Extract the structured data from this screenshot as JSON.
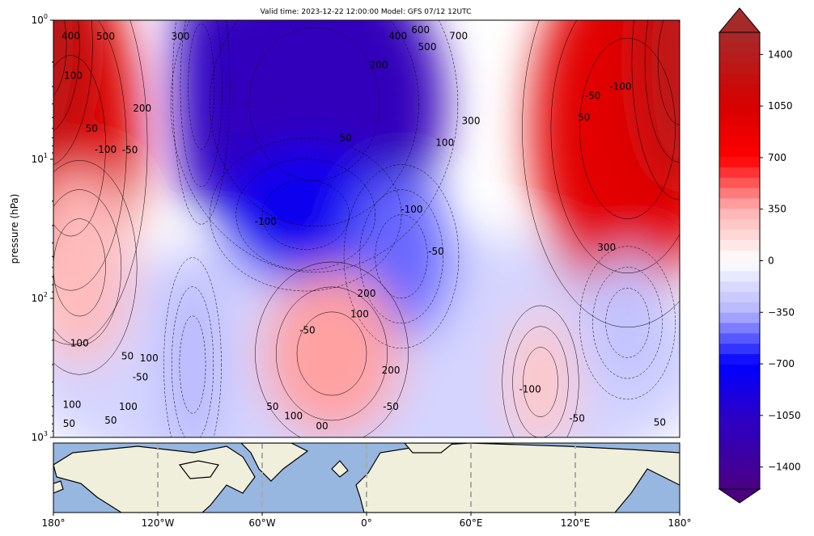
{
  "chart_data": {
    "type": "heatmap",
    "title": "Valid time: 2023-12-22 12:00:00 Model: GFS 07/12 12UTC",
    "ylabel": "pressure (hPa)",
    "xlabel": "",
    "xlim": [
      -180,
      180
    ],
    "ylim": [
      1000,
      1
    ],
    "yscale": "log",
    "y_ticks": [
      {
        "value": 1,
        "label": "10^0"
      },
      {
        "value": 10,
        "label": "10^1"
      },
      {
        "value": 100,
        "label": "10^2"
      },
      {
        "value": 1000,
        "label": "10^3"
      }
    ],
    "x_ticks": [
      {
        "value": -180,
        "label": "180°"
      },
      {
        "value": -120,
        "label": "120°W"
      },
      {
        "value": -60,
        "label": "60°W"
      },
      {
        "value": 0,
        "label": "0°"
      },
      {
        "value": 60,
        "label": "60°E"
      },
      {
        "value": 120,
        "label": "120°E"
      },
      {
        "value": 180,
        "label": "180°"
      }
    ],
    "colorbar": {
      "range": [
        -1550,
        1550
      ],
      "ticks": [
        1400,
        1050,
        700,
        350,
        0,
        -350,
        -700,
        -1050,
        -1400
      ],
      "tick_labels": [
        "1400",
        "1050",
        "700",
        "350",
        "0",
        "−350",
        "−700",
        "−1050",
        "−1400"
      ],
      "extend": "both"
    },
    "field": [
      {
        "lon": 0,
        "p": 300,
        "dlon": 200,
        "dp": 1.0,
        "value": -200
      },
      {
        "lon": -170,
        "p": 8,
        "dlon": 40,
        "dp": 1.3,
        "value": 1000
      },
      {
        "lon": -185,
        "p": 1.5,
        "dlon": 25,
        "dp": 0.8,
        "value": 1350
      },
      {
        "lon": 150,
        "p": 6,
        "dlon": 55,
        "dp": 1.3,
        "value": 950
      },
      {
        "lon": 180,
        "p": 2,
        "dlon": 25,
        "dp": 0.9,
        "value": 1300
      },
      {
        "lon": -30,
        "p": 4,
        "dlon": 75,
        "dp": 1.1,
        "value": -1150
      },
      {
        "lon": -95,
        "p": 3,
        "dlon": 15,
        "dp": 0.9,
        "value": -1100
      },
      {
        "lon": -35,
        "p": 25,
        "dlon": 50,
        "dp": 0.5,
        "value": -800
      },
      {
        "lon": 20,
        "p": 50,
        "dlon": 30,
        "dp": 0.6,
        "value": -500
      },
      {
        "lon": -20,
        "p": 250,
        "dlon": 40,
        "dp": 0.6,
        "value": 380
      },
      {
        "lon": -165,
        "p": 60,
        "dlon": 30,
        "dp": 0.7,
        "value": 300
      },
      {
        "lon": 100,
        "p": 400,
        "dlon": 20,
        "dp": 0.5,
        "value": 250
      },
      {
        "lon": 150,
        "p": 150,
        "dlon": 25,
        "dp": 0.5,
        "value": -280
      },
      {
        "lon": -100,
        "p": 300,
        "dlon": 15,
        "dp": 0.7,
        "value": -350
      }
    ],
    "contour_labels": [
      {
        "lon": -170,
        "p": 1.3,
        "text": "400"
      },
      {
        "lon": -150,
        "p": 1.1,
        "text": "500"
      },
      {
        "lon": -107,
        "p": 1.1,
        "text": "300"
      },
      {
        "lon": -176,
        "p": 2.5,
        "text": "100"
      },
      {
        "lon": -158,
        "p": 6,
        "text": "50"
      },
      {
        "lon": -129,
        "p": 4.3,
        "text": "200"
      },
      {
        "lon": -150,
        "p": 8.5,
        "text": "-100"
      },
      {
        "lon": -136,
        "p": 8.6,
        "text": "-50"
      },
      {
        "lon": 7,
        "p": 2.1,
        "text": "200"
      },
      {
        "lon": 18,
        "p": 1.3,
        "text": "400"
      },
      {
        "lon": 20,
        "p": 1.1,
        "text": "500"
      },
      {
        "lon": 31,
        "p": 1.4,
        "text": "600"
      },
      {
        "lon": 38,
        "p": 1.3,
        "text": "700"
      },
      {
        "lon": 60,
        "p": 5.3,
        "text": "300"
      },
      {
        "lon": 45,
        "p": 7.6,
        "text": "100"
      },
      {
        "lon": -12,
        "p": 7,
        "text": "50"
      },
      {
        "lon": 26,
        "p": 23,
        "text": "-100"
      },
      {
        "lon": -58,
        "p": 28,
        "text": "-100"
      },
      {
        "lon": 40,
        "p": 46,
        "text": "-50"
      },
      {
        "lon": 130,
        "p": 3.5,
        "text": "-50"
      },
      {
        "lon": 146,
        "p": 3,
        "text": "-100"
      },
      {
        "lon": 125,
        "p": 5,
        "text": "50"
      },
      {
        "lon": 138,
        "p": 43,
        "text": "300"
      },
      {
        "lon": 0,
        "p": 92,
        "text": "200"
      },
      {
        "lon": -4,
        "p": 130,
        "text": "100"
      },
      {
        "lon": -34,
        "p": 170,
        "text": "-50"
      },
      {
        "lon": 14,
        "p": 330,
        "text": "200"
      },
      {
        "lon": -165,
        "p": 210,
        "text": "100"
      },
      {
        "lon": -125,
        "p": 270,
        "text": "100"
      },
      {
        "lon": -130,
        "p": 370,
        "text": "-50"
      },
      {
        "lon": -130,
        "p": 310,
        "text": "50"
      },
      {
        "lon": -137,
        "p": 600,
        "text": "100"
      },
      {
        "lon": -54,
        "p": 600,
        "text": "50"
      },
      {
        "lon": -42,
        "p": 700,
        "text": "100"
      },
      {
        "lon": 14,
        "p": 600,
        "text": "-50"
      },
      {
        "lon": 94,
        "p": 450,
        "text": "-100"
      },
      {
        "lon": 121,
        "p": 730,
        "text": "-50"
      },
      {
        "lon": -147,
        "p": 900,
        "text": "50"
      },
      {
        "lon": -171,
        "p": 950,
        "text": "50"
      },
      {
        "lon": -147,
        "p": 980,
        "text": "100"
      },
      {
        "lon": 176,
        "p": 930,
        "text": "50"
      },
      {
        "lon": -33,
        "p": 990,
        "text": "00"
      }
    ]
  }
}
